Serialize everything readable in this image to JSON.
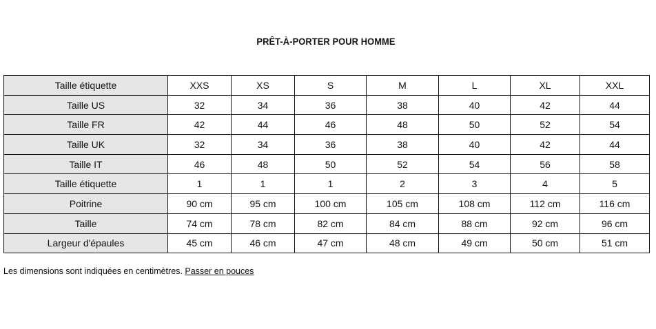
{
  "title": "PRÊT-À-PORTER POUR HOMME",
  "table": {
    "rows": [
      {
        "label": "Taille étiquette",
        "values": [
          "XXS",
          "XS",
          "S",
          "M",
          "L",
          "XL",
          "XXL"
        ]
      },
      {
        "label": "Taille US",
        "values": [
          "32",
          "34",
          "36",
          "38",
          "40",
          "42",
          "44"
        ]
      },
      {
        "label": "Taille FR",
        "values": [
          "42",
          "44",
          "46",
          "48",
          "50",
          "52",
          "54"
        ]
      },
      {
        "label": "Taille UK",
        "values": [
          "32",
          "34",
          "36",
          "38",
          "40",
          "42",
          "44"
        ]
      },
      {
        "label": "Taille IT",
        "values": [
          "46",
          "48",
          "50",
          "52",
          "54",
          "56",
          "58"
        ]
      },
      {
        "label": "Taille étiquette",
        "values": [
          "1",
          "1",
          "1",
          "2",
          "3",
          "4",
          "5"
        ]
      },
      {
        "label": "Poitrine",
        "values": [
          "90 cm",
          "95 cm",
          "100 cm",
          "105 cm",
          "108 cm",
          "112 cm",
          "116 cm"
        ]
      },
      {
        "label": "Taille",
        "values": [
          "74 cm",
          "78 cm",
          "82 cm",
          "84 cm",
          "88 cm",
          "92 cm",
          "96 cm"
        ]
      },
      {
        "label": "Largeur d'épaules",
        "values": [
          "45 cm",
          "46 cm",
          "47 cm",
          "48 cm",
          "49 cm",
          "50 cm",
          "51 cm"
        ]
      }
    ]
  },
  "footer": {
    "note": "Les dimensions sont indiquées en centimètres.",
    "link": "Passer en pouces"
  }
}
